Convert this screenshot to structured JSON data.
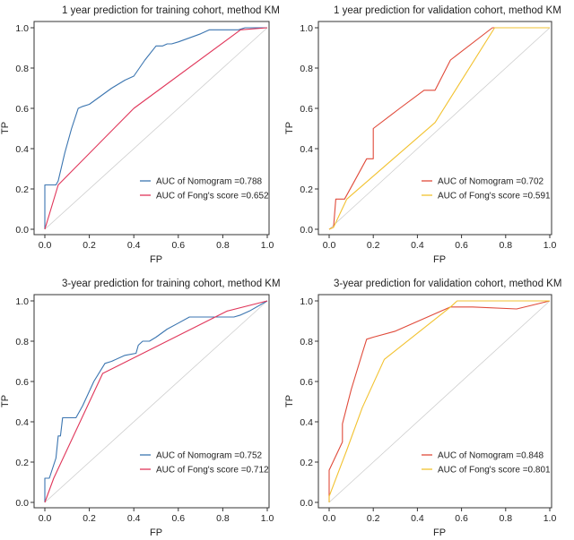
{
  "chart_data": [
    {
      "type": "line",
      "title": "1 year prediction for training cohort, method KM",
      "xlabel": "FP",
      "ylabel": "TP",
      "xlim": [
        0,
        1
      ],
      "ylim": [
        0,
        1
      ],
      "xticks": [
        "0.0",
        "0.2",
        "0.4",
        "0.6",
        "0.8",
        "1.0"
      ],
      "yticks": [
        "0.0",
        "0.2",
        "0.4",
        "0.6",
        "0.8",
        "1.0"
      ],
      "legend_position": "bottom-right",
      "diagonal_reference": true,
      "series": [
        {
          "name": "AUC of Nomogram =0.788",
          "color": "#3b75b0",
          "x": [
            0,
            0,
            0.01,
            0.05,
            0.06,
            0.09,
            0.12,
            0.15,
            0.17,
            0.2,
            0.25,
            0.3,
            0.36,
            0.4,
            0.45,
            0.5,
            0.53,
            0.55,
            0.57,
            0.6,
            0.65,
            0.7,
            0.74,
            0.8,
            0.87,
            0.9,
            1.0
          ],
          "y": [
            0,
            0.22,
            0.22,
            0.22,
            0.24,
            0.38,
            0.5,
            0.6,
            0.61,
            0.62,
            0.66,
            0.7,
            0.74,
            0.76,
            0.84,
            0.91,
            0.91,
            0.92,
            0.92,
            0.93,
            0.95,
            0.97,
            0.99,
            0.99,
            0.99,
            1.0,
            1.0
          ]
        },
        {
          "name": "AUC of Fong's score =0.652",
          "color": "#e0365a",
          "x": [
            0,
            0.06,
            0.4,
            0.88,
            1.0
          ],
          "y": [
            0,
            0.22,
            0.6,
            0.99,
            1.0
          ]
        }
      ]
    },
    {
      "type": "line",
      "title": "1 year prediction for validation cohort, method KM",
      "xlabel": "FP",
      "ylabel": "TP",
      "xlim": [
        0,
        1
      ],
      "ylim": [
        0,
        1
      ],
      "xticks": [
        "0.0",
        "0.2",
        "0.4",
        "0.6",
        "0.8",
        "1.0"
      ],
      "yticks": [
        "0.0",
        "0.2",
        "0.4",
        "0.6",
        "0.8",
        "1.0"
      ],
      "legend_position": "bottom-right",
      "diagonal_reference": true,
      "series": [
        {
          "name": "AUC of Nomogram =0.702",
          "color": "#e04a3a",
          "x": [
            0,
            0.02,
            0.03,
            0.07,
            0.11,
            0.17,
            0.2,
            0.2,
            0.32,
            0.43,
            0.48,
            0.55,
            0.74,
            1.0
          ],
          "y": [
            0,
            0.01,
            0.15,
            0.15,
            0.23,
            0.35,
            0.35,
            0.5,
            0.6,
            0.69,
            0.69,
            0.84,
            1.0,
            1.0
          ]
        },
        {
          "name": "AUC of Fong's score =0.591",
          "color": "#f2c230",
          "x": [
            0,
            0.02,
            0.08,
            0.48,
            0.75,
            0.8,
            1.0
          ],
          "y": [
            0,
            0.01,
            0.15,
            0.53,
            1.0,
            1.0,
            1.0
          ]
        }
      ]
    },
    {
      "type": "line",
      "title": "3-year prediction for training cohort, method KM",
      "xlabel": "FP",
      "ylabel": "TP",
      "xlim": [
        0,
        1
      ],
      "ylim": [
        0,
        1
      ],
      "xticks": [
        "0.0",
        "0.2",
        "0.4",
        "0.6",
        "0.8",
        "1.0"
      ],
      "yticks": [
        "0.0",
        "0.2",
        "0.4",
        "0.6",
        "0.8",
        "1.0"
      ],
      "legend_position": "bottom-right",
      "diagonal_reference": true,
      "series": [
        {
          "name": "AUC of Nomogram =0.752",
          "color": "#3b75b0",
          "x": [
            0,
            0,
            0.02,
            0.05,
            0.06,
            0.07,
            0.08,
            0.1,
            0.12,
            0.14,
            0.17,
            0.22,
            0.27,
            0.3,
            0.36,
            0.41,
            0.42,
            0.44,
            0.47,
            0.5,
            0.55,
            0.6,
            0.65,
            0.72,
            0.85,
            0.88,
            0.92,
            1.0
          ],
          "y": [
            0,
            0.12,
            0.12,
            0.22,
            0.33,
            0.33,
            0.42,
            0.42,
            0.42,
            0.42,
            0.48,
            0.6,
            0.69,
            0.7,
            0.73,
            0.74,
            0.78,
            0.8,
            0.8,
            0.82,
            0.86,
            0.89,
            0.92,
            0.92,
            0.92,
            0.93,
            0.95,
            1.0
          ]
        },
        {
          "name": "AUC of Fong's score =0.712",
          "color": "#e0365a",
          "x": [
            0,
            0.04,
            0.26,
            0.82,
            1.0
          ],
          "y": [
            0,
            0.12,
            0.64,
            0.95,
            1.0
          ]
        }
      ]
    },
    {
      "type": "line",
      "title": "3-year prediction for validation cohort, method KM",
      "xlabel": "FP",
      "ylabel": "TP",
      "xlim": [
        0,
        1
      ],
      "ylim": [
        0,
        1
      ],
      "xticks": [
        "0.0",
        "0.2",
        "0.4",
        "0.6",
        "0.8",
        "1.0"
      ],
      "yticks": [
        "0.0",
        "0.2",
        "0.4",
        "0.6",
        "0.8",
        "1.0"
      ],
      "legend_position": "bottom-right",
      "diagonal_reference": true,
      "series": [
        {
          "name": "AUC of Nomogram =0.848",
          "color": "#e04a3a",
          "x": [
            0,
            0,
            0.06,
            0.06,
            0.1,
            0.15,
            0.17,
            0.2,
            0.3,
            0.55,
            0.65,
            0.85,
            1.0
          ],
          "y": [
            0,
            0.16,
            0.3,
            0.39,
            0.56,
            0.74,
            0.81,
            0.82,
            0.85,
            0.97,
            0.97,
            0.96,
            1.0
          ]
        },
        {
          "name": "AUC of Fong's score =0.801",
          "color": "#f2c230",
          "x": [
            0,
            0,
            0.08,
            0.15,
            0.25,
            0.55,
            0.58,
            0.8,
            1.0
          ],
          "y": [
            0,
            0.03,
            0.26,
            0.47,
            0.71,
            0.97,
            1.0,
            1.0,
            1.0
          ]
        }
      ]
    }
  ]
}
